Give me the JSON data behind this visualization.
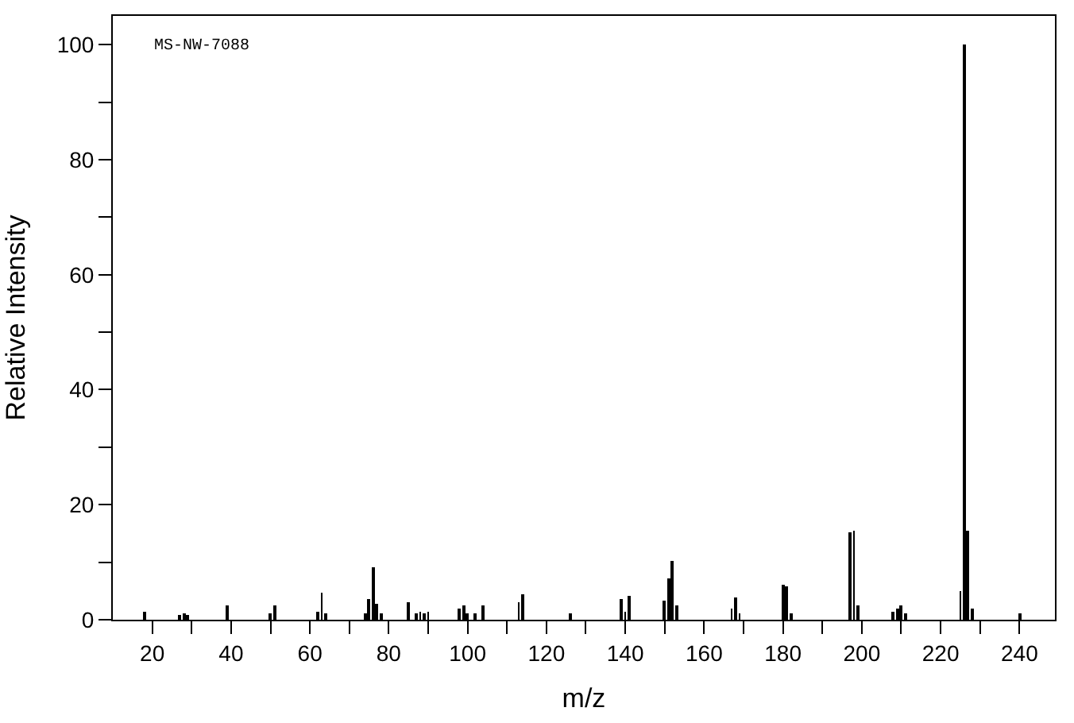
{
  "chart_data": {
    "type": "bar",
    "xlabel": "m/z",
    "ylabel": "Relative Intensity",
    "annotations": [
      "MS-NW-7088"
    ],
    "x": [
      18,
      27,
      28,
      29,
      39,
      50,
      51,
      62,
      63,
      64,
      74,
      75,
      76,
      77,
      78,
      85,
      87,
      88,
      89,
      90,
      98,
      99,
      100,
      102,
      104,
      113,
      114,
      126,
      139,
      140,
      141,
      150,
      151,
      152,
      153,
      167,
      168,
      169,
      180,
      181,
      182,
      197,
      198,
      199,
      208,
      209,
      210,
      211,
      225,
      226,
      227,
      228,
      240
    ],
    "values": [
      1.5,
      0.7,
      1,
      0.7,
      2.5,
      1,
      2.6,
      1.5,
      4.6,
      1,
      1.2,
      3.5,
      9.2,
      2.9,
      1,
      3,
      1.2,
      1.5,
      1,
      1.5,
      2,
      2.5,
      1,
      1,
      2.5,
      3,
      4.4,
      1,
      3.7,
      1.5,
      4.2,
      3.3,
      7.3,
      10.3,
      2.5,
      2,
      4,
      1,
      6.2,
      5.8,
      1,
      15.3,
      15.5,
      2.5,
      1.5,
      2,
      2.4,
      1,
      5.1,
      100,
      15.5,
      2,
      1
    ],
    "color": "#000000",
    "xlim": [
      10,
      249
    ],
    "ylim": [
      0,
      105
    ],
    "xticks": [
      20,
      {
        "value": 30,
        "label": null
      },
      40,
      {
        "value": 50,
        "label": null
      },
      60,
      {
        "value": 70,
        "label": null
      },
      80,
      {
        "value": 90,
        "label": null
      },
      100,
      {
        "value": 110,
        "label": null
      },
      120,
      {
        "value": 130,
        "label": null
      },
      140,
      {
        "value": 150,
        "label": null
      },
      160,
      {
        "value": 170,
        "label": null
      },
      180,
      {
        "value": 190,
        "label": null
      },
      200,
      {
        "value": 210,
        "label": null
      },
      220,
      {
        "value": 230,
        "label": null
      },
      240
    ],
    "yticks": [
      0,
      {
        "value": 10,
        "label": null
      },
      20,
      {
        "value": 30,
        "label": null
      },
      40,
      {
        "value": 50,
        "label": null
      },
      60,
      {
        "value": 70,
        "label": null
      },
      80,
      {
        "value": 90,
        "label": null
      },
      100
    ]
  }
}
